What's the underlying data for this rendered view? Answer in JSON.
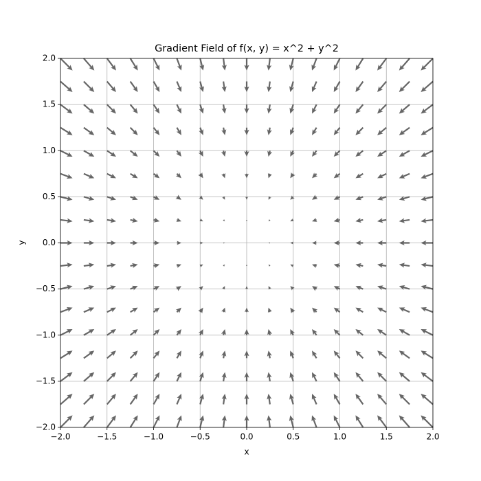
{
  "chart_data": {
    "type": "quiver",
    "title": "Gradient Field of f(x, y) = x^2 + y^2",
    "x_label": "x",
    "y_label": "y",
    "x": [
      -2,
      -1.75,
      -1.5,
      -1.25,
      -1,
      -0.75,
      -0.5,
      -0.25,
      0,
      0.25,
      0.5,
      0.75,
      1,
      1.25,
      1.5,
      1.75,
      2
    ],
    "y": [
      -2,
      -1.75,
      -1.5,
      -1.25,
      -1,
      -0.75,
      -0.5,
      -0.25,
      0,
      0.25,
      0.5,
      0.75,
      1,
      1.25,
      1.5,
      1.75,
      2
    ],
    "u": [
      4,
      3.5,
      3,
      2.5,
      2,
      1.5,
      1,
      0.5,
      0,
      -0.5,
      -1,
      -1.5,
      -2,
      -2.5,
      -3,
      -3.5,
      -4
    ],
    "v": [
      4,
      3.5,
      3,
      2.5,
      2,
      1.5,
      1,
      0.5,
      0,
      -0.5,
      -1,
      -1.5,
      -2,
      -2.5,
      -3,
      -3.5,
      -4
    ],
    "color": "#555555",
    "xlim": [
      -2,
      2
    ],
    "ylim": [
      -2,
      2
    ],
    "xticks": [
      {
        "value": -2,
        "label": "−2.0"
      },
      {
        "value": -1.5,
        "label": "−1.5"
      },
      {
        "value": -1,
        "label": "−1.0"
      },
      {
        "value": -0.5,
        "label": "−0.5"
      },
      {
        "value": 0,
        "label": "0.0"
      },
      {
        "value": 0.5,
        "label": "0.5"
      },
      {
        "value": 1,
        "label": "1.0"
      },
      {
        "value": 1.5,
        "label": "1.5"
      },
      {
        "value": 2,
        "label": "2.0"
      }
    ],
    "yticks": [
      {
        "value": -2,
        "label": "−2.0"
      },
      {
        "value": -1.5,
        "label": "−1.5"
      },
      {
        "value": -1,
        "label": "−1.0"
      },
      {
        "value": -0.5,
        "label": "−0.5"
      },
      {
        "value": 0,
        "label": "0.0"
      },
      {
        "value": 0.5,
        "label": "0.5"
      },
      {
        "value": 1,
        "label": "1.0"
      },
      {
        "value": 1.5,
        "label": "1.5"
      },
      {
        "value": 2,
        "label": "2.0"
      }
    ],
    "grid": true
  }
}
